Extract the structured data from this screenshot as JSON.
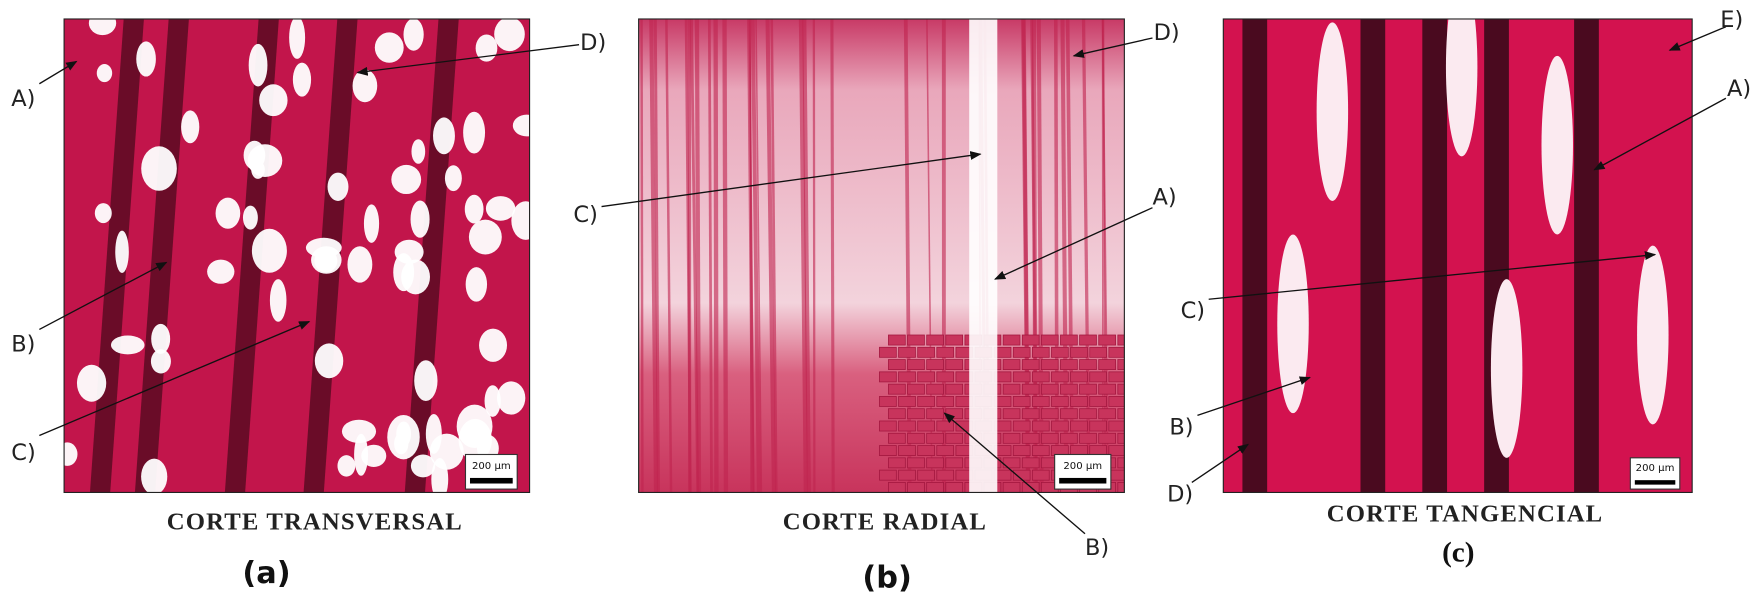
{
  "panels": [
    {
      "caption": "CORTE TRANSVERSAL",
      "letter": "(a)",
      "scale_bar": "200 µm",
      "labels": [
        "A)",
        "B)",
        "C)",
        "D)"
      ]
    },
    {
      "caption": "CORTE RADIAL",
      "letter": "(b)",
      "scale_bar": "200 µm",
      "labels": [
        "A)",
        "B)",
        "C)",
        "D)"
      ]
    },
    {
      "caption": "CORTE TANGENCIAL",
      "letter": "(c)",
      "scale_bar": "200 µm",
      "labels": [
        "A)",
        "B)",
        "C)",
        "D)",
        "E)"
      ]
    }
  ]
}
